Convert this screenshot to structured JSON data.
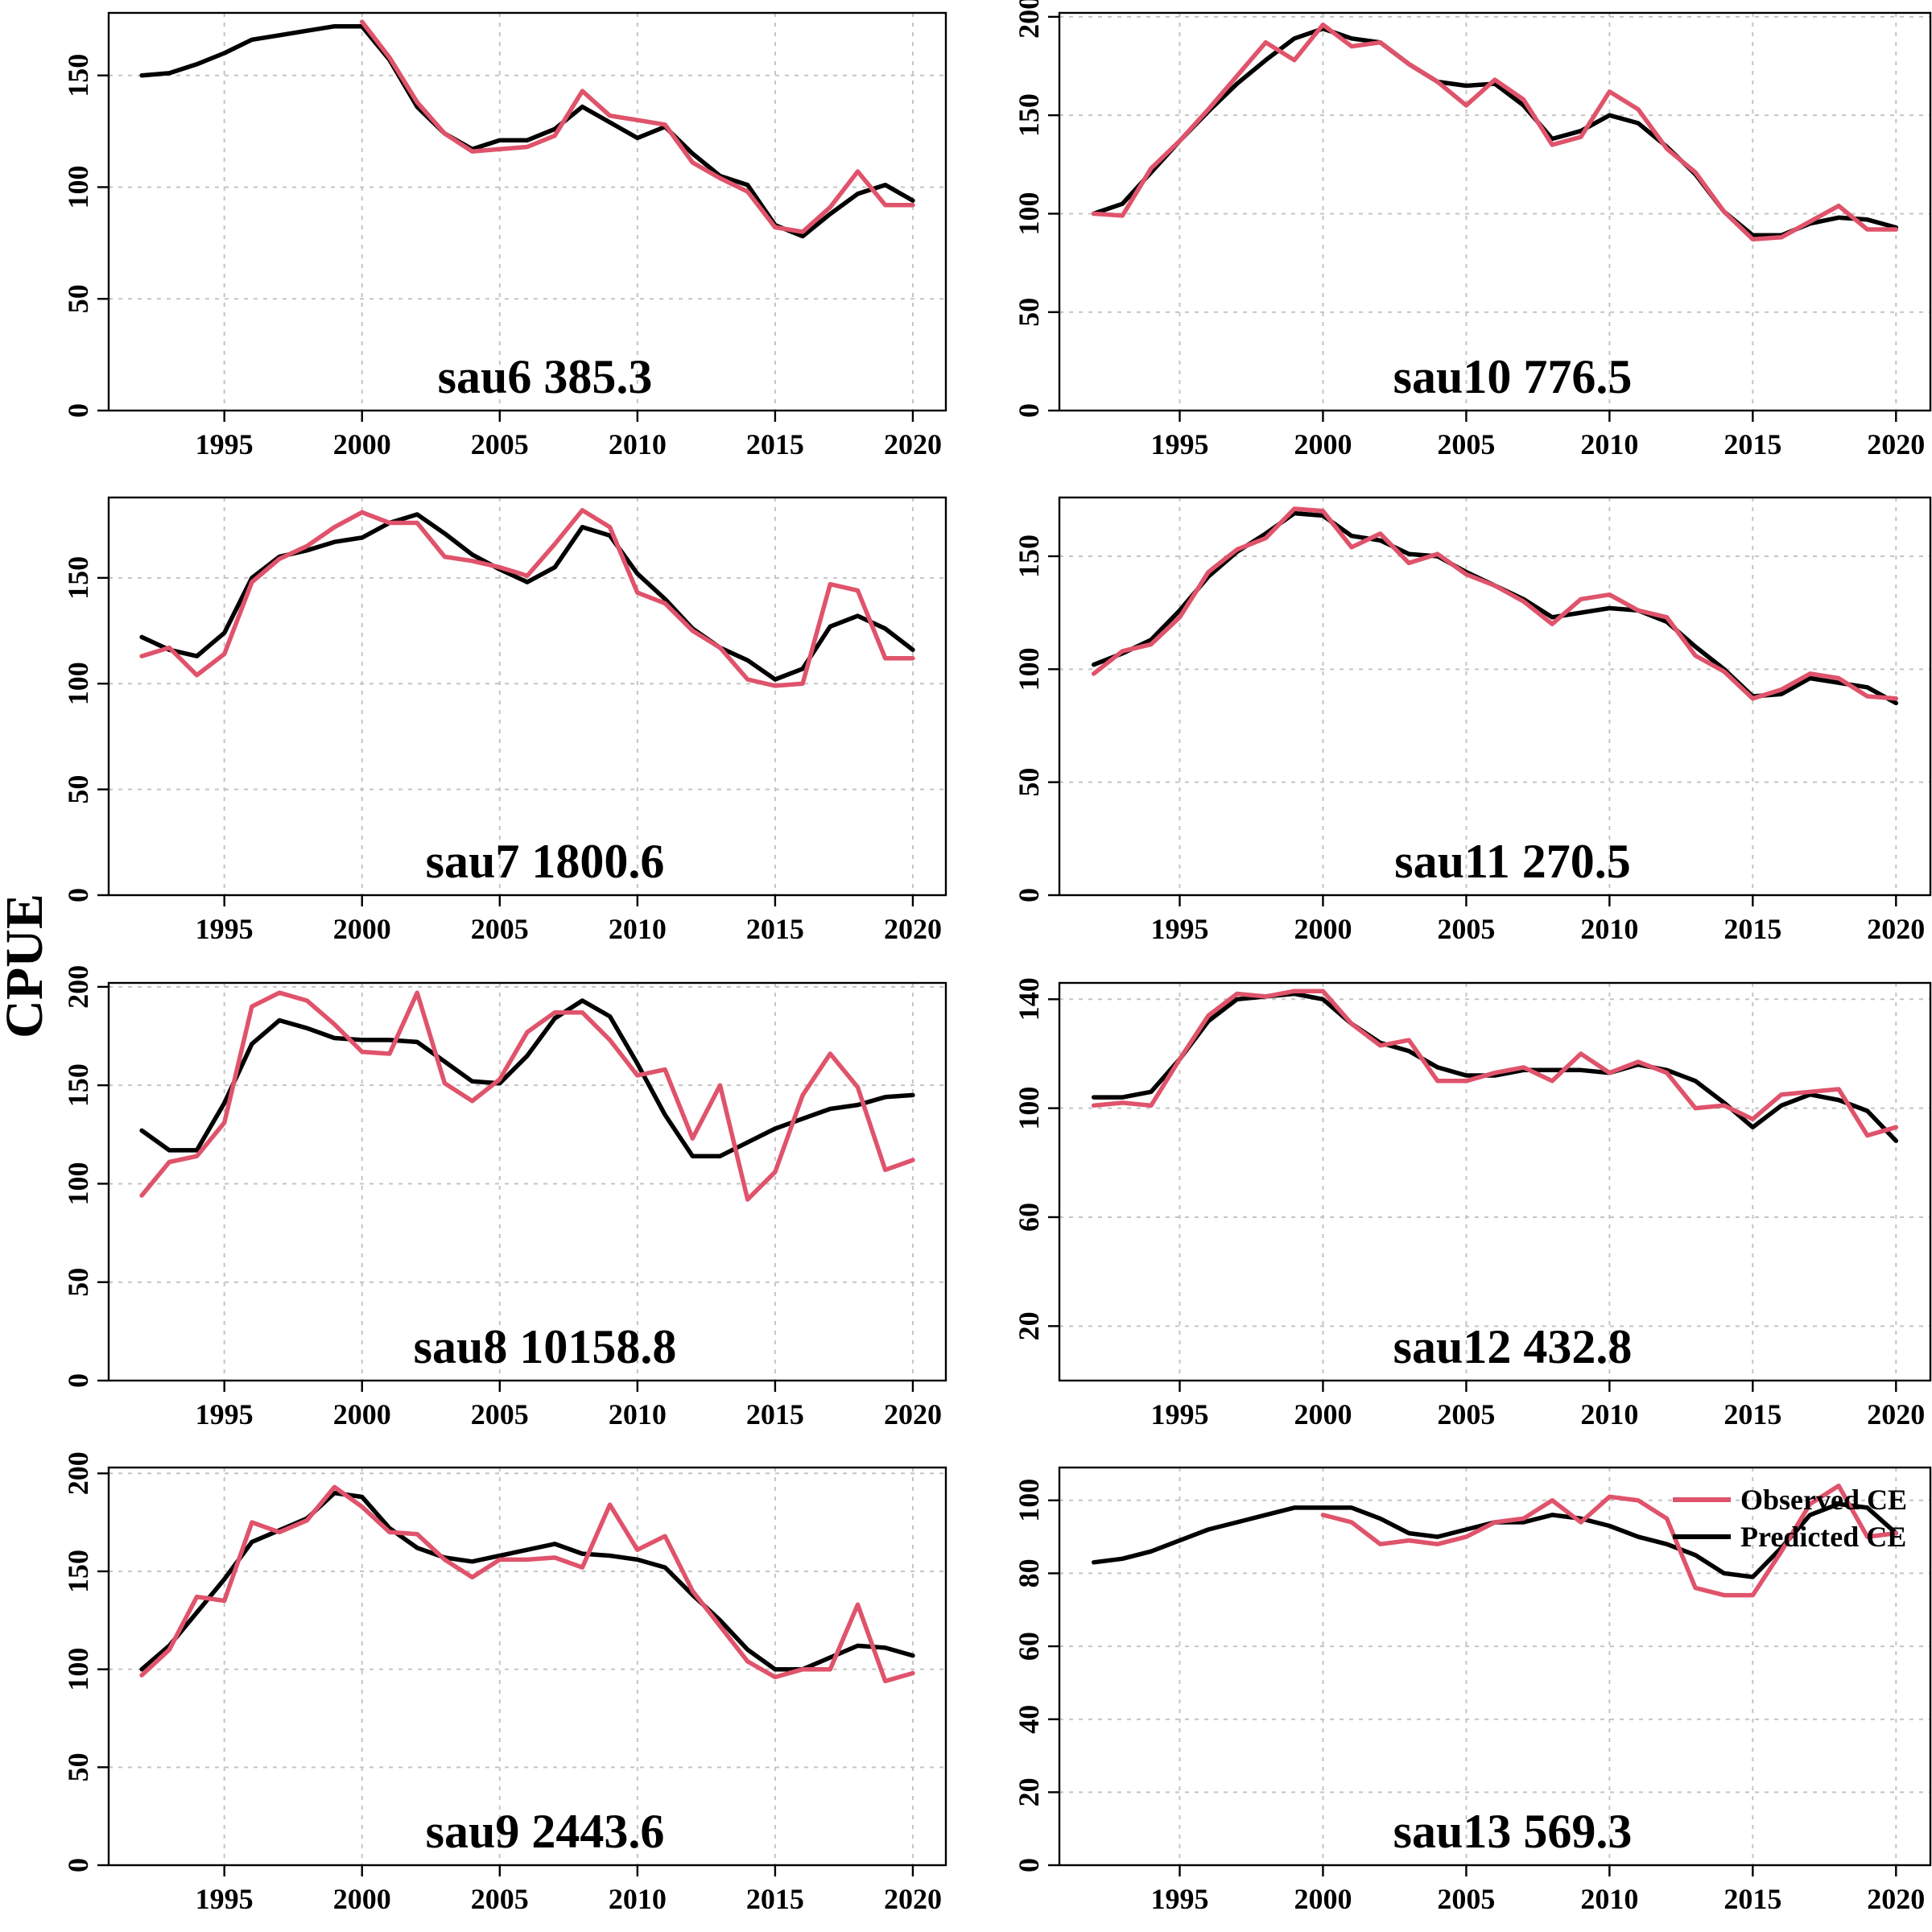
{
  "chart_data": {
    "type": "line",
    "ylabel": "CPUE",
    "legend": {
      "placement": "top-right",
      "panel": "sau13",
      "entries": [
        {
          "series": "observed",
          "label": "Observed CE",
          "color": "#df536b"
        },
        {
          "series": "predicted",
          "label": "Predicted CE",
          "color": "#000000"
        }
      ]
    },
    "colors": {
      "observed": "#df536b",
      "predicted": "#000000",
      "grid": "#c4c4c4"
    },
    "x_axis": {
      "range": [
        1990.8,
        2021.2
      ],
      "ticks": [
        1995,
        2000,
        2005,
        2010,
        2015,
        2020
      ]
    },
    "panels": [
      {
        "id": "sau6",
        "label": "sau6  385.3",
        "ylim": [
          0,
          178
        ],
        "yticks": [
          0,
          50,
          100,
          150
        ],
        "x_start": 1992,
        "predicted": [
          150,
          151,
          155,
          160,
          166,
          168,
          170,
          172,
          172,
          157,
          136,
          124,
          117,
          121,
          121,
          126,
          136,
          129,
          122,
          127,
          115,
          105,
          101,
          83,
          78,
          88,
          97,
          101,
          94
        ],
        "observed_start": 2000,
        "observed": [
          174,
          158,
          138,
          124,
          116,
          117,
          118,
          123,
          143,
          132,
          130,
          128,
          111,
          104,
          98,
          82,
          80,
          91,
          107,
          92,
          92
        ]
      },
      {
        "id": "sau10",
        "label": "sau10  776.5",
        "ylim": [
          0,
          202
        ],
        "yticks": [
          0,
          50,
          100,
          150,
          200
        ],
        "x_start": 1992,
        "predicted": [
          100,
          105,
          121,
          137,
          152,
          166,
          178,
          189,
          194,
          189,
          187,
          176,
          167,
          165,
          166,
          155,
          138,
          142,
          150,
          146,
          134,
          120,
          101,
          89,
          89,
          95,
          98,
          97,
          93
        ],
        "observed_start": 1992,
        "observed": [
          100,
          99,
          123,
          137,
          153,
          170,
          187,
          178,
          196,
          185,
          187,
          176,
          167,
          155,
          168,
          158,
          135,
          139,
          162,
          153,
          133,
          121,
          101,
          87,
          88,
          96,
          104,
          92,
          92
        ]
      },
      {
        "id": "sau7",
        "label": "sau7  1800.6",
        "ylim": [
          0,
          188
        ],
        "yticks": [
          0,
          50,
          100,
          150
        ],
        "x_start": 1992,
        "predicted": [
          122,
          116,
          113,
          124,
          150,
          160,
          163,
          167,
          169,
          176,
          180,
          171,
          161,
          154,
          148,
          155,
          174,
          170,
          152,
          140,
          126,
          117,
          111,
          102,
          107,
          127,
          132,
          126,
          116
        ],
        "observed_start": 1992,
        "observed": [
          113,
          117,
          104,
          114,
          148,
          159,
          165,
          174,
          181,
          176,
          176,
          160,
          158,
          155,
          151,
          166,
          182,
          174,
          143,
          138,
          125,
          117,
          102,
          99,
          100,
          147,
          144,
          112,
          112
        ]
      },
      {
        "id": "sau11",
        "label": "sau11  270.5",
        "ylim": [
          0,
          176
        ],
        "yticks": [
          0,
          50,
          100,
          150
        ],
        "x_start": 1992,
        "predicted": [
          102,
          107,
          113,
          126,
          141,
          152,
          160,
          169,
          168,
          159,
          157,
          151,
          150,
          143,
          137,
          131,
          123,
          125,
          127,
          126,
          121,
          110,
          100,
          88,
          89,
          96,
          94,
          92,
          85
        ],
        "observed_start": 1992,
        "observed": [
          98,
          108,
          111,
          123,
          143,
          153,
          158,
          171,
          170,
          154,
          160,
          147,
          151,
          142,
          137,
          130,
          120,
          131,
          133,
          126,
          123,
          106,
          99,
          87,
          91,
          98,
          96,
          88,
          87
        ]
      },
      {
        "id": "sau8",
        "label": "sau8  10158.8",
        "ylim": [
          0,
          202
        ],
        "yticks": [
          0,
          50,
          100,
          150,
          200
        ],
        "x_start": 1992,
        "predicted": [
          127,
          117,
          117,
          141,
          171,
          183,
          179,
          174,
          173,
          173,
          172,
          162,
          152,
          151,
          165,
          184,
          193,
          185,
          161,
          135,
          114,
          114,
          121,
          128,
          133,
          138,
          140,
          144,
          145
        ],
        "observed_start": 1992,
        "observed": [
          94,
          111,
          114,
          131,
          190,
          197,
          193,
          181,
          167,
          166,
          197,
          151,
          142,
          153,
          177,
          187,
          187,
          173,
          155,
          158,
          123,
          150,
          92,
          106,
          145,
          166,
          149,
          107,
          112
        ]
      },
      {
        "id": "sau12",
        "label": "sau12  432.8",
        "ylim": [
          0,
          146
        ],
        "yticks": [
          20,
          60,
          100,
          140
        ],
        "x_start": 1992,
        "predicted": [
          104,
          104,
          106,
          118,
          132,
          140,
          141,
          142,
          140,
          131,
          124,
          121,
          115,
          112,
          112,
          114,
          114,
          114,
          113,
          116,
          114,
          110,
          102,
          93,
          101,
          105,
          103,
          99,
          88
        ],
        "observed_start": 1992,
        "observed": [
          101,
          102,
          101,
          118,
          134,
          142,
          141,
          143,
          143,
          131,
          123,
          125,
          110,
          110,
          113,
          115,
          110,
          120,
          113,
          117,
          113,
          100,
          101,
          96,
          105,
          106,
          107,
          90,
          93
        ]
      },
      {
        "id": "sau9",
        "label": "sau9  2443.6",
        "ylim": [
          0,
          203
        ],
        "yticks": [
          0,
          50,
          100,
          150,
          200
        ],
        "x_start": 1992,
        "predicted": [
          100,
          112,
          129,
          146,
          165,
          171,
          177,
          190,
          188,
          172,
          162,
          157,
          155,
          158,
          161,
          164,
          159,
          158,
          156,
          152,
          138,
          125,
          110,
          100,
          100,
          106,
          112,
          111,
          107
        ],
        "observed_start": 1992,
        "observed": [
          97,
          110,
          137,
          135,
          175,
          170,
          176,
          193,
          183,
          170,
          169,
          156,
          147,
          156,
          156,
          157,
          152,
          184,
          161,
          168,
          140,
          122,
          104,
          96,
          100,
          100,
          133,
          94,
          98
        ]
      },
      {
        "id": "sau13",
        "label": "sau13  569.3",
        "ylim": [
          0,
          109
        ],
        "yticks": [
          0,
          20,
          40,
          60,
          80,
          100
        ],
        "x_start": 1992,
        "predicted": [
          83,
          84,
          86,
          89,
          92,
          94,
          96,
          98,
          98,
          98,
          95,
          91,
          90,
          92,
          94,
          94,
          96,
          95,
          93,
          90,
          88,
          85,
          80,
          79,
          87,
          96,
          99,
          98,
          91
        ],
        "observed_start": 2000,
        "observed": [
          96,
          94,
          88,
          89,
          88,
          90,
          94,
          95,
          100,
          94,
          101,
          100,
          95,
          76,
          74,
          74,
          86,
          99,
          104,
          90,
          91
        ]
      }
    ]
  }
}
